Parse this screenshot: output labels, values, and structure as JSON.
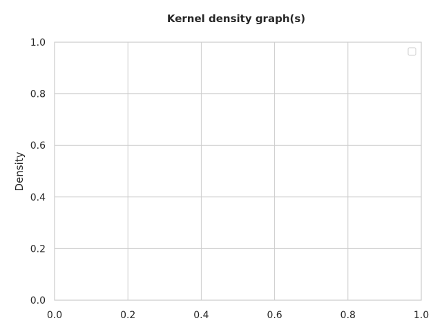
{
  "chart_data": {
    "type": "line",
    "title": "Kernel density graph(s)",
    "xlabel": "",
    "ylabel": "Density",
    "xlim": [
      0.0,
      1.0
    ],
    "ylim": [
      0.0,
      1.0
    ],
    "x_ticks": [
      0.0,
      0.2,
      0.4,
      0.6,
      0.8,
      1.0
    ],
    "y_ticks": [
      0.0,
      0.2,
      0.4,
      0.6,
      0.8,
      1.0
    ],
    "x_tick_labels": [
      "0.0",
      "0.2",
      "0.4",
      "0.6",
      "0.8",
      "1.0"
    ],
    "y_tick_labels": [
      "0.0",
      "0.2",
      "0.4",
      "0.6",
      "0.8",
      "1.0"
    ],
    "series": [],
    "grid": true,
    "legend": {
      "placement": "top-right",
      "entries": []
    },
    "colors": {
      "grid": "#cccccc",
      "frame": "#cccccc",
      "text": "#262626"
    }
  }
}
